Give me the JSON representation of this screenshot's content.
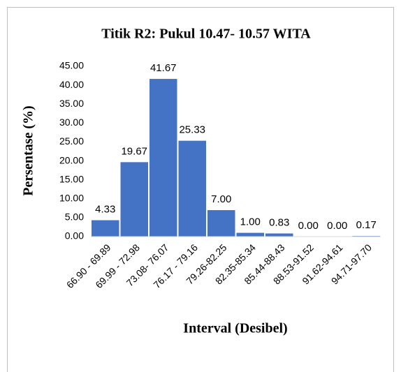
{
  "chart_data": {
    "type": "bar",
    "title": "Titik R2: Pukul 10.47- 10.57 WITA",
    "x_label": "Interval (Desibel)",
    "y_label": "Persentase (%)",
    "categories": [
      "66.90 - 69.89",
      "69.99 - 72.98",
      "73.08- 76.07",
      "76.17 - 79.16",
      "79.26-82.25",
      "82.35-85.34",
      "85.44-88.43",
      "88.53-91.52",
      "91.62-94.61",
      "94.71-97.70"
    ],
    "values": [
      4.33,
      19.67,
      41.67,
      25.33,
      7.0,
      1.0,
      0.83,
      0.0,
      0.0,
      0.17
    ],
    "value_labels": [
      "4.33",
      "19.67",
      "41.67",
      "25.33",
      "7.00",
      "1.00",
      "0.83",
      "0.00",
      "0.00",
      "0.17"
    ],
    "color": "#4472c4",
    "ylim": [
      0,
      45
    ],
    "yticks": [
      {
        "value": 0,
        "label": "0.00"
      },
      {
        "value": 5,
        "label": "5.00"
      },
      {
        "value": 10,
        "label": "10.00"
      },
      {
        "value": 15,
        "label": "15.00"
      },
      {
        "value": 20,
        "label": "20.00"
      },
      {
        "value": 25,
        "label": "25.00"
      },
      {
        "value": 30,
        "label": "30.00"
      },
      {
        "value": 35,
        "label": "35.00"
      },
      {
        "value": 40,
        "label": "40.00"
      },
      {
        "value": 45,
        "label": "45.00"
      }
    ],
    "grid": false
  }
}
